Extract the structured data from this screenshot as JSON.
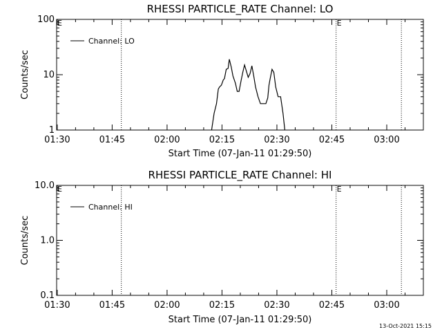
{
  "footer": {
    "timestamp": "13-Oct-2021 15:15"
  },
  "chart_data": [
    {
      "type": "line",
      "title": "RHESSI PARTICLE_RATE Channel: LO",
      "xlabel": "Start Time (07-Jan-11 01:29:50)",
      "ylabel": "Counts/sec",
      "x_ticks": [
        "01:30",
        "01:45",
        "02:00",
        "02:15",
        "02:30",
        "02:45",
        "03:00"
      ],
      "y_ticks": [
        "1",
        "10",
        "100"
      ],
      "y_scale": "log",
      "ylim": [
        1,
        100
      ],
      "xlim": [
        "01:29:50",
        "03:10:00"
      ],
      "legend": "Channel: LO",
      "legend_position": "top-left",
      "event_markers": [
        {
          "time": "01:29:50",
          "label": "E"
        },
        {
          "time": "02:46:10",
          "label": "E"
        }
      ],
      "vertical_lines": [
        "01:47:30",
        "02:46:10",
        "03:04:00"
      ],
      "series": [
        {
          "name": "Channel: LO",
          "x": [
            "02:12:10",
            "02:12:50",
            "02:13:30",
            "02:14:00",
            "02:14:20",
            "02:14:50",
            "02:15:20",
            "02:15:40",
            "02:16:10",
            "02:16:40",
            "02:17:00",
            "02:17:30",
            "02:18:00",
            "02:18:40",
            "02:19:10",
            "02:19:40",
            "02:20:10",
            "02:20:40",
            "02:21:10",
            "02:21:40",
            "02:22:10",
            "02:22:40",
            "02:23:10",
            "02:23:40",
            "02:24:10",
            "02:24:50",
            "02:25:30",
            "02:26:20",
            "02:27:00",
            "02:27:30",
            "02:27:50",
            "02:28:10",
            "02:28:40",
            "02:29:10",
            "02:29:40",
            "02:30:20",
            "02:31:00",
            "02:31:40",
            "02:32:10"
          ],
          "y": [
            1.0,
            2.0,
            3.0,
            5.5,
            6.0,
            6.5,
            8.0,
            8.5,
            12.5,
            13.0,
            19.0,
            14.0,
            9.5,
            7.0,
            5.0,
            5.0,
            7.5,
            11.0,
            15.0,
            11.5,
            9.0,
            10.5,
            14.5,
            9.5,
            6.0,
            4.0,
            3.0,
            3.0,
            3.0,
            3.8,
            6.5,
            8.5,
            12.5,
            11.0,
            6.0,
            4.0,
            4.0,
            2.0,
            1.0
          ]
        }
      ]
    },
    {
      "type": "line",
      "title": "RHESSI PARTICLE_RATE Channel: HI",
      "xlabel": "Start Time (07-Jan-11 01:29:50)",
      "ylabel": "Counts/sec",
      "x_ticks": [
        "01:30",
        "01:45",
        "02:00",
        "02:15",
        "02:30",
        "02:45",
        "03:00"
      ],
      "y_ticks": [
        "0.1",
        "1.0",
        "10.0"
      ],
      "y_scale": "log",
      "ylim": [
        0.1,
        10
      ],
      "xlim": [
        "01:29:50",
        "03:10:00"
      ],
      "legend": "Channel: HI",
      "legend_position": "top-left",
      "event_markers": [
        {
          "time": "01:29:50",
          "label": "E"
        },
        {
          "time": "02:46:10",
          "label": "E"
        }
      ],
      "vertical_lines": [
        "01:47:30",
        "02:46:10",
        "03:04:00"
      ],
      "series": [
        {
          "name": "Channel: HI",
          "x": [],
          "y": []
        }
      ]
    }
  ]
}
